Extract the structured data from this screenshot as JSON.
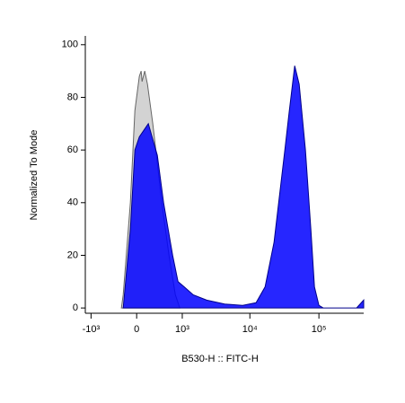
{
  "chart_data": {
    "type": "histogram-overlay",
    "x_label": "B530-H :: FITC-H",
    "y_label": "Normalized To Mode",
    "xscale": "biexponential",
    "xlim": [
      -1230,
      445000
    ],
    "xticks": [
      {
        "value": -1000,
        "label": "-10³"
      },
      0,
      {
        "value": 1000,
        "label": "10³"
      },
      {
        "value": 10000,
        "label": "10⁴"
      },
      {
        "value": 100000,
        "label": "10⁵"
      }
    ],
    "ylim": [
      -2,
      103
    ],
    "yticks": [
      0,
      20,
      40,
      60,
      80,
      100
    ],
    "series": [
      {
        "color": "#d3d3d3",
        "edge": "#666666",
        "x": [
          -244,
          -213,
          -97,
          -27,
          41,
          69,
          83,
          125,
          169,
          259,
          342,
          431,
          597,
          771,
          913
        ],
        "values": [
          0,
          5,
          40,
          75,
          88,
          90,
          86,
          90,
          85,
          70,
          55,
          40,
          20,
          5,
          0
        ]
      },
      {
        "color": "#0000ff",
        "edge": "#00008b",
        "x": [
          -213,
          -97,
          -27,
          41,
          125,
          183,
          342,
          470,
          693,
          854,
          1074,
          1478,
          2350,
          4305,
          7849,
          12300,
          16600,
          22400,
          32100,
          37300,
          44600,
          51800,
          63800,
          76400,
          86200,
          100000,
          116000,
          351000,
          445000
        ],
        "values": [
          0,
          30,
          60,
          65,
          68,
          70,
          58,
          40,
          20,
          10,
          8,
          5,
          3,
          1.5,
          1,
          2,
          8,
          25,
          60,
          75,
          92,
          85,
          60,
          30,
          8,
          1,
          0,
          0,
          3
        ]
      }
    ]
  }
}
